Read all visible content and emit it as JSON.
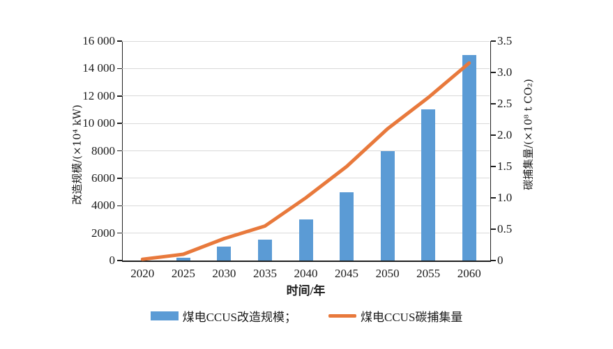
{
  "chart_data": {
    "type": "combo",
    "categories": [
      "2020",
      "2025",
      "2030",
      "2035",
      "2040",
      "2045",
      "2050",
      "2055",
      "2060"
    ],
    "series": [
      {
        "name": "煤电CCUS改造规模",
        "chart_type": "bar",
        "axis": "left",
        "color": "#5B9BD5",
        "values": [
          0,
          200,
          1000,
          1500,
          3000,
          5000,
          8000,
          11000,
          15000
        ]
      },
      {
        "name": "煤电CCUS碳捕集量",
        "chart_type": "line",
        "axis": "right",
        "color": "#E8793C",
        "values": [
          0.02,
          0.1,
          0.35,
          0.55,
          1.0,
          1.5,
          2.1,
          2.6,
          3.15
        ]
      }
    ],
    "xlabel": "时间/年",
    "left_axis": {
      "label": "改造规模/(×10⁴ kW)",
      "min": 0,
      "max": 16000,
      "tick_labels": [
        "0",
        "2000",
        "4000",
        "6000",
        "8000",
        "10 000",
        "12 000",
        "14 000",
        "16 000"
      ]
    },
    "right_axis": {
      "label": "碳捕集量/(×10⁸ t CO₂)",
      "min": 0,
      "max": 3.5,
      "tick_labels": [
        "0",
        "0.5",
        "1.0",
        "1.5",
        "2.0",
        "2.5",
        "3.0",
        "3.5"
      ]
    },
    "grid": true,
    "legend": {
      "position": "bottom",
      "items": [
        {
          "label": "煤电CCUS改造规模；",
          "swatch": "bar"
        },
        {
          "label": "煤电CCUS碳捕集量",
          "swatch": "line"
        }
      ]
    }
  }
}
